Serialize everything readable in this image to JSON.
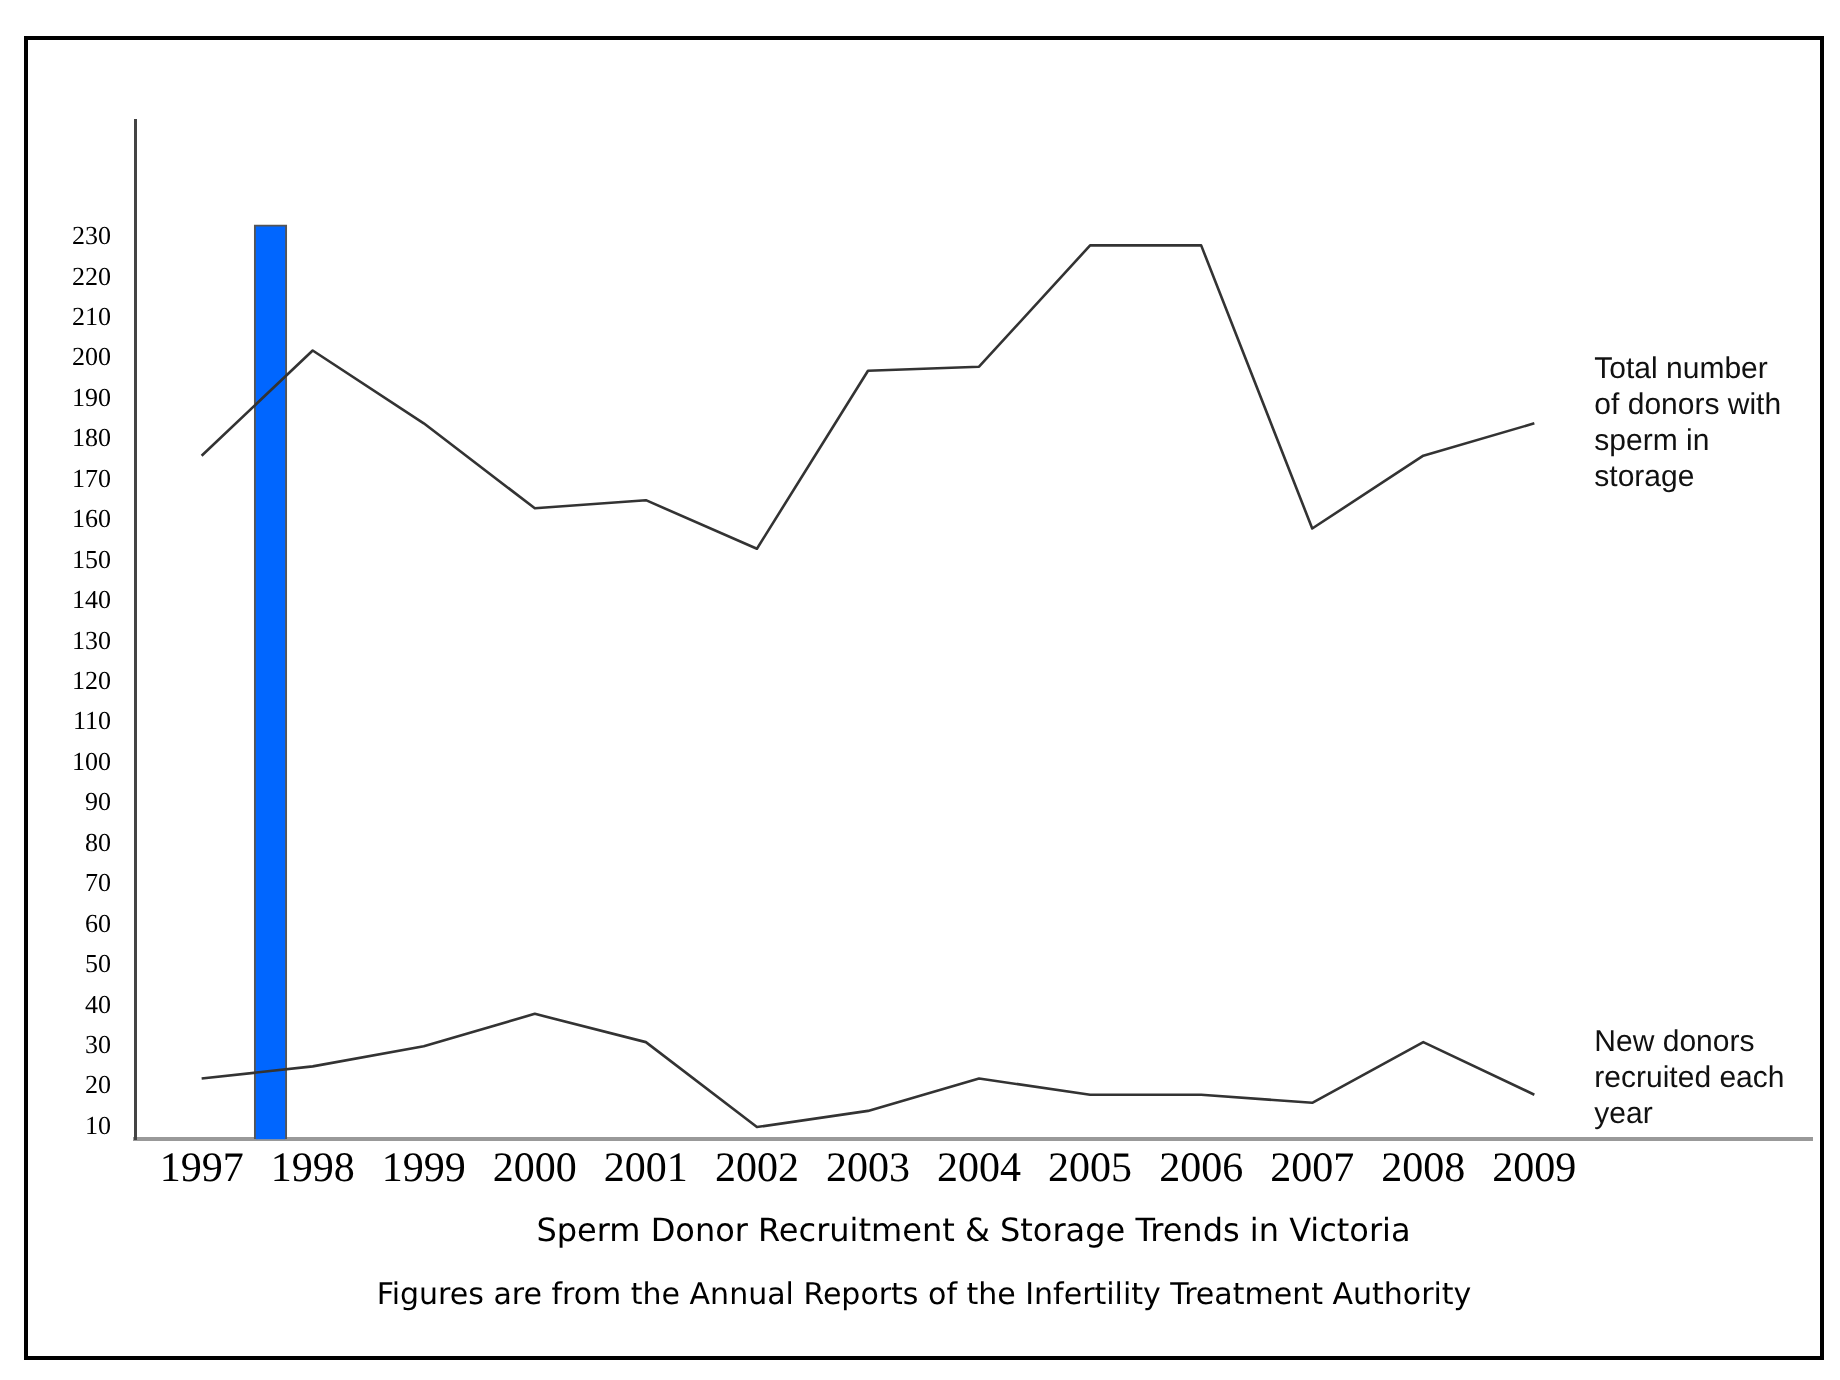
{
  "chart_data": {
    "type": "line",
    "x": [
      1997,
      1998,
      1999,
      2000,
      2001,
      2002,
      2003,
      2004,
      2005,
      2006,
      2007,
      2008,
      2009
    ],
    "xlim": [
      1996.4,
      2011.5
    ],
    "xticks": [
      1997,
      1998,
      1999,
      2000,
      2001,
      2002,
      2003,
      2004,
      2005,
      2006,
      2007,
      2008,
      2009
    ],
    "ylim": [
      7,
      259
    ],
    "yticks": [
      10,
      20,
      30,
      40,
      50,
      60,
      70,
      80,
      90,
      100,
      110,
      120,
      130,
      140,
      150,
      160,
      170,
      180,
      190,
      200,
      210,
      220,
      230
    ],
    "xlabel": "Sperm Donor Recruitment & Storage Trends in Victoria",
    "annotations": [
      "Figures are from the Annual Reports of the Infertility Treatment Authority"
    ],
    "grid": false,
    "legend": false,
    "marker": "none",
    "series": [
      {
        "name": "Total number of donors with sperm in storage",
        "color": "#333333",
        "values": [
          176,
          202,
          184,
          163,
          165,
          153,
          197,
          198,
          228,
          228,
          158,
          176,
          184
        ]
      },
      {
        "name": "New donors recruited each year",
        "color": "#333333",
        "values": [
          22,
          25,
          30,
          38,
          31,
          10,
          14,
          22,
          18,
          18,
          16,
          31,
          18
        ]
      },
      {
        "type": "bar",
        "x": [
          1997.62
        ],
        "base": [
          7
        ],
        "values": [
          226
        ],
        "color": "#0066ff"
      }
    ]
  }
}
